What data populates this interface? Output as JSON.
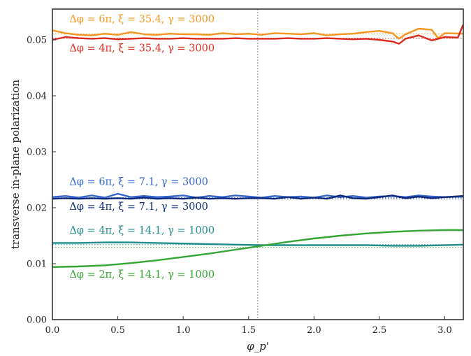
{
  "chart_data": {
    "type": "line",
    "xlabel": "φ_p'",
    "ylabel": "transverse in-plane polarization",
    "xlim": [
      0,
      3.14159
    ],
    "ylim": [
      0,
      0.0555
    ],
    "xticks": [
      0.0,
      0.5,
      1.0,
      1.5,
      2.0,
      2.5,
      3.0
    ],
    "xtick_labels": [
      "0.0",
      "0.5",
      "1.0",
      "1.5",
      "2.0",
      "2.5",
      "3.0"
    ],
    "yticks": [
      0.0,
      0.01,
      0.02,
      0.03,
      0.04,
      0.05
    ],
    "ytick_labels": [
      "0.00",
      "0.01",
      "0.02",
      "0.03",
      "0.04",
      "0.05"
    ],
    "grid": false,
    "vline": {
      "x": 1.5708,
      "color": "#888888",
      "style": "dotted"
    },
    "series": [
      {
        "name": "Δφ = 6π, ξ = 35.4, γ = 3000",
        "color": "#f5961e",
        "reference_y": 0.0511,
        "x": [
          0.0,
          0.1,
          0.2,
          0.3,
          0.4,
          0.5,
          0.6,
          0.7,
          0.8,
          0.9,
          1.0,
          1.1,
          1.2,
          1.3,
          1.4,
          1.5,
          1.6,
          1.7,
          1.8,
          1.9,
          2.0,
          2.1,
          2.2,
          2.3,
          2.4,
          2.5,
          2.6,
          2.65,
          2.7,
          2.8,
          2.9,
          2.95,
          3.0,
          3.14
        ],
        "y": [
          0.0517,
          0.0512,
          0.0509,
          0.0508,
          0.0511,
          0.0509,
          0.0514,
          0.051,
          0.0509,
          0.0511,
          0.051,
          0.051,
          0.0509,
          0.0512,
          0.051,
          0.0511,
          0.0509,
          0.0512,
          0.0511,
          0.051,
          0.0512,
          0.0508,
          0.051,
          0.0511,
          0.0514,
          0.0516,
          0.0512,
          0.0502,
          0.051,
          0.052,
          0.0518,
          0.0503,
          0.0512,
          0.0511
        ]
      },
      {
        "name": "Δφ = 4π, ξ = 35.4, γ = 3000",
        "color": "#dd2a1e",
        "reference_y": 0.0503,
        "x": [
          0.0,
          0.1,
          0.2,
          0.3,
          0.4,
          0.5,
          0.6,
          0.7,
          0.8,
          0.9,
          1.0,
          1.1,
          1.2,
          1.3,
          1.4,
          1.5,
          1.6,
          1.7,
          1.8,
          1.9,
          2.0,
          2.1,
          2.2,
          2.3,
          2.4,
          2.5,
          2.6,
          2.65,
          2.7,
          2.8,
          2.9,
          3.0,
          3.1,
          3.14
        ],
        "y": [
          0.05,
          0.0505,
          0.0503,
          0.0502,
          0.0503,
          0.0501,
          0.0502,
          0.0503,
          0.0502,
          0.0502,
          0.0503,
          0.0502,
          0.0502,
          0.0502,
          0.0503,
          0.0502,
          0.0502,
          0.0502,
          0.0503,
          0.0502,
          0.0502,
          0.0503,
          0.0502,
          0.0501,
          0.0502,
          0.05,
          0.0497,
          0.0493,
          0.0502,
          0.0508,
          0.0499,
          0.0505,
          0.0504,
          0.0527
        ]
      },
      {
        "name": "Δφ = 6π, ξ = 7.1, γ = 3000",
        "color": "#3366cc",
        "reference_y": 0.0218,
        "x": [
          0.0,
          0.1,
          0.2,
          0.3,
          0.4,
          0.5,
          0.6,
          0.7,
          0.8,
          0.9,
          1.0,
          1.1,
          1.2,
          1.3,
          1.4,
          1.5,
          1.6,
          1.7,
          1.8,
          1.9,
          2.0,
          2.1,
          2.2,
          2.3,
          2.4,
          2.5,
          2.6,
          2.7,
          2.8,
          2.9,
          3.0,
          3.14
        ],
        "y": [
          0.0219,
          0.0221,
          0.0218,
          0.0222,
          0.0218,
          0.0225,
          0.0219,
          0.0221,
          0.0219,
          0.022,
          0.0222,
          0.0218,
          0.0221,
          0.0219,
          0.0222,
          0.022,
          0.0218,
          0.0221,
          0.0219,
          0.022,
          0.0218,
          0.0222,
          0.0219,
          0.0221,
          0.0218,
          0.022,
          0.0221,
          0.0219,
          0.0222,
          0.022,
          0.0219,
          0.022
        ]
      },
      {
        "name": "Δφ = 4π, ξ = 7.1, γ = 3000",
        "color": "#0d2a7a",
        "reference_y": 0.0216,
        "x": [
          0.0,
          0.1,
          0.2,
          0.3,
          0.4,
          0.5,
          0.6,
          0.7,
          0.8,
          0.9,
          1.0,
          1.1,
          1.2,
          1.3,
          1.4,
          1.5,
          1.6,
          1.7,
          1.8,
          1.9,
          2.0,
          2.1,
          2.2,
          2.3,
          2.4,
          2.5,
          2.6,
          2.7,
          2.8,
          2.9,
          3.0,
          3.14
        ],
        "y": [
          0.0216,
          0.0217,
          0.0216,
          0.0217,
          0.0216,
          0.0217,
          0.0216,
          0.0218,
          0.0216,
          0.0217,
          0.0216,
          0.0218,
          0.0216,
          0.0217,
          0.0216,
          0.0217,
          0.0217,
          0.0216,
          0.0219,
          0.0216,
          0.0218,
          0.0216,
          0.0222,
          0.0217,
          0.0216,
          0.0219,
          0.0222,
          0.0217,
          0.022,
          0.0217,
          0.0219,
          0.0221
        ]
      },
      {
        "name": "Δφ = 4π, ξ = 14.1, γ = 1000",
        "color": "#1f8c8c",
        "reference_y": 0.0134,
        "x": [
          0.0,
          0.2,
          0.4,
          0.6,
          0.8,
          1.0,
          1.2,
          1.4,
          1.6,
          1.8,
          2.0,
          2.2,
          2.4,
          2.6,
          2.8,
          3.0,
          3.14
        ],
        "y": [
          0.0137,
          0.0137,
          0.0138,
          0.0138,
          0.0137,
          0.0136,
          0.0135,
          0.0134,
          0.0133,
          0.0133,
          0.0133,
          0.0133,
          0.0133,
          0.0132,
          0.0132,
          0.0133,
          0.0134
        ]
      },
      {
        "name": "Δφ = 2π, ξ = 14.1, γ = 1000",
        "color": "#33a532",
        "reference_y": 0.0129,
        "x": [
          0.0,
          0.2,
          0.4,
          0.6,
          0.8,
          1.0,
          1.2,
          1.4,
          1.6,
          1.8,
          2.0,
          2.2,
          2.4,
          2.6,
          2.8,
          3.0,
          3.14
        ],
        "y": [
          0.0094,
          0.0095,
          0.0097,
          0.0101,
          0.0106,
          0.0112,
          0.0118,
          0.0125,
          0.0132,
          0.0139,
          0.0145,
          0.015,
          0.0154,
          0.0157,
          0.0159,
          0.016,
          0.016
        ]
      }
    ],
    "annotations": [
      {
        "text": "Δφ = 6π, ξ = 35.4, γ = 3000",
        "color": "#f5961e",
        "x": 0.13,
        "y": 0.05315
      },
      {
        "text": "Δφ = 4π, ξ = 35.4, γ = 3000",
        "color": "#dd2a1e",
        "x": 0.13,
        "y": 0.04795
      },
      {
        "text": "Δφ = 6π, ξ = 7.1, γ = 3000",
        "color": "#3366cc",
        "x": 0.13,
        "y": 0.02405
      },
      {
        "text": "Δφ = 4π, ξ = 7.1, γ = 3000",
        "color": "#0d2a7a",
        "x": 0.13,
        "y": 0.01965
      },
      {
        "text": "Δφ = 4π, ξ = 14.1, γ = 1000",
        "color": "#1f8c8c",
        "x": 0.13,
        "y": 0.0154
      },
      {
        "text": "Δφ = 2π, ξ = 14.1, γ = 1000",
        "color": "#33a532",
        "x": 0.13,
        "y": 0.0075
      }
    ]
  }
}
